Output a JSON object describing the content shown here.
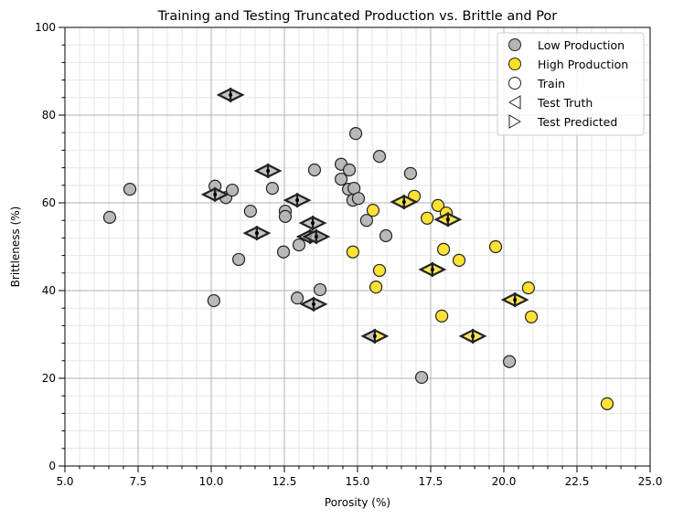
{
  "chart_data": {
    "type": "scatter",
    "title": "Training and Testing Truncated Production vs. Brittle and Por",
    "xlabel": "Porosity (%)",
    "ylabel": "Brittleness (%)",
    "xlim": [
      5.0,
      25.0
    ],
    "ylim": [
      0,
      100
    ],
    "xticks": [
      "5.0",
      "7.5",
      "10.0",
      "12.5",
      "15.0",
      "17.5",
      "20.0",
      "22.5",
      "25.0"
    ],
    "yticks": [
      "0",
      "20",
      "40",
      "60",
      "80",
      "100"
    ],
    "grid": "major and minor",
    "legend_position": "top-right",
    "legend": [
      "Low Production",
      "High Production",
      "Train",
      "Test Truth",
      "Test Predicted"
    ],
    "colors": {
      "low": "#b5b5b5",
      "high": "#fde02a",
      "edge": "#222222"
    },
    "train": [
      {
        "x": 6.53,
        "y": 56.7,
        "class": "low"
      },
      {
        "x": 7.22,
        "y": 63.1,
        "class": "low"
      },
      {
        "x": 10.13,
        "y": 63.8,
        "class": "low"
      },
      {
        "x": 10.09,
        "y": 37.7,
        "class": "low"
      },
      {
        "x": 10.5,
        "y": 61.2,
        "class": "low"
      },
      {
        "x": 10.72,
        "y": 62.9,
        "class": "low"
      },
      {
        "x": 10.94,
        "y": 47.1,
        "class": "low"
      },
      {
        "x": 11.34,
        "y": 58.1,
        "class": "low"
      },
      {
        "x": 12.09,
        "y": 63.3,
        "class": "low"
      },
      {
        "x": 12.53,
        "y": 58.1,
        "class": "low"
      },
      {
        "x": 12.53,
        "y": 56.9,
        "class": "low"
      },
      {
        "x": 12.47,
        "y": 48.8,
        "class": "low"
      },
      {
        "x": 12.94,
        "y": 38.3,
        "class": "low"
      },
      {
        "x": 13.0,
        "y": 50.4,
        "class": "low"
      },
      {
        "x": 13.53,
        "y": 67.5,
        "class": "low"
      },
      {
        "x": 13.72,
        "y": 40.2,
        "class": "low"
      },
      {
        "x": 14.44,
        "y": 68.8,
        "class": "low"
      },
      {
        "x": 14.44,
        "y": 65.4,
        "class": "low"
      },
      {
        "x": 14.72,
        "y": 67.5,
        "class": "low"
      },
      {
        "x": 14.69,
        "y": 63.1,
        "class": "low"
      },
      {
        "x": 14.84,
        "y": 60.6,
        "class": "low"
      },
      {
        "x": 14.88,
        "y": 63.3,
        "class": "low"
      },
      {
        "x": 14.94,
        "y": 75.8,
        "class": "low"
      },
      {
        "x": 15.03,
        "y": 61.0,
        "class": "low"
      },
      {
        "x": 15.31,
        "y": 56.0,
        "class": "low"
      },
      {
        "x": 15.75,
        "y": 70.6,
        "class": "low"
      },
      {
        "x": 15.97,
        "y": 52.5,
        "class": "low"
      },
      {
        "x": 16.81,
        "y": 66.7,
        "class": "low"
      },
      {
        "x": 17.19,
        "y": 20.2,
        "class": "low"
      },
      {
        "x": 20.19,
        "y": 23.8,
        "class": "low"
      },
      {
        "x": 15.53,
        "y": 58.3,
        "class": "high"
      },
      {
        "x": 14.84,
        "y": 48.8,
        "class": "high"
      },
      {
        "x": 15.75,
        "y": 44.6,
        "class": "high"
      },
      {
        "x": 15.63,
        "y": 40.8,
        "class": "high"
      },
      {
        "x": 16.94,
        "y": 61.5,
        "class": "high"
      },
      {
        "x": 17.38,
        "y": 56.5,
        "class": "high"
      },
      {
        "x": 17.75,
        "y": 59.4,
        "class": "high"
      },
      {
        "x": 18.03,
        "y": 57.7,
        "class": "high"
      },
      {
        "x": 17.94,
        "y": 49.4,
        "class": "high"
      },
      {
        "x": 17.88,
        "y": 34.2,
        "class": "high"
      },
      {
        "x": 18.47,
        "y": 46.9,
        "class": "high"
      },
      {
        "x": 19.72,
        "y": 50.0,
        "class": "high"
      },
      {
        "x": 20.84,
        "y": 40.6,
        "class": "high"
      },
      {
        "x": 20.94,
        "y": 34.0,
        "class": "high"
      },
      {
        "x": 23.53,
        "y": 14.2,
        "class": "high"
      }
    ],
    "test": [
      {
        "x": 10.66,
        "y": 84.6,
        "truth": "low",
        "pred": "low"
      },
      {
        "x": 11.94,
        "y": 67.3,
        "truth": "low",
        "pred": "low"
      },
      {
        "x": 10.13,
        "y": 61.9,
        "truth": "low",
        "pred": "low"
      },
      {
        "x": 12.94,
        "y": 60.6,
        "truth": "low",
        "pred": "low"
      },
      {
        "x": 11.56,
        "y": 53.1,
        "truth": "low",
        "pred": "low"
      },
      {
        "x": 13.47,
        "y": 55.4,
        "truth": "low",
        "pred": "low"
      },
      {
        "x": 13.38,
        "y": 52.3,
        "truth": "low",
        "pred": "low"
      },
      {
        "x": 13.59,
        "y": 52.3,
        "truth": "low",
        "pred": "low"
      },
      {
        "x": 13.5,
        "y": 36.9,
        "truth": "low",
        "pred": "low"
      },
      {
        "x": 16.59,
        "y": 60.2,
        "truth": "high",
        "pred": "high"
      },
      {
        "x": 18.09,
        "y": 56.2,
        "truth": "high",
        "pred": "high"
      },
      {
        "x": 17.56,
        "y": 44.8,
        "truth": "high",
        "pred": "high"
      },
      {
        "x": 15.59,
        "y": 29.6,
        "truth": "low",
        "pred": "high"
      },
      {
        "x": 18.94,
        "y": 29.6,
        "truth": "high",
        "pred": "high"
      },
      {
        "x": 20.38,
        "y": 37.9,
        "truth": "high",
        "pred": "high"
      }
    ]
  }
}
